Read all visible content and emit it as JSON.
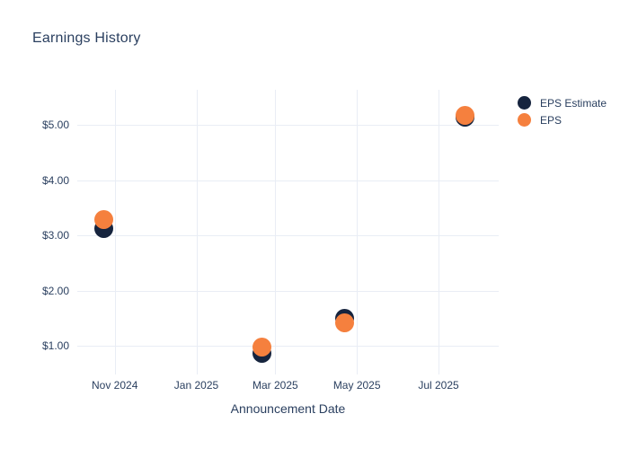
{
  "chart_data": {
    "type": "scatter",
    "title": "Earnings History",
    "xlabel": "Announcement Date",
    "ylabel": "",
    "title_color": "#2a3f5f",
    "text_color": "#2a3f5f",
    "grid_color": "#e9edf5",
    "background_color": "#ffffff",
    "grid": true,
    "legend_position": "right-top",
    "x_range": [
      "2024-10-04",
      "2025-08-15"
    ],
    "y_range": [
      0.48,
      5.64
    ],
    "x_ticks": [
      {
        "label": "Nov 2024",
        "date": "2024-11-01"
      },
      {
        "label": "Jan 2025",
        "date": "2025-01-01"
      },
      {
        "label": "Mar 2025",
        "date": "2025-03-01"
      },
      {
        "label": "May 2025",
        "date": "2025-05-01"
      },
      {
        "label": "Jul 2025",
        "date": "2025-07-01"
      }
    ],
    "y_ticks": [
      {
        "label": "$5.00",
        "value": 5.0
      },
      {
        "label": "$4.00",
        "value": 4.0
      },
      {
        "label": "$3.00",
        "value": 3.0
      },
      {
        "label": "$2.00",
        "value": 2.0
      },
      {
        "label": "$1.00",
        "value": 1.0
      }
    ],
    "series": [
      {
        "name": "EPS Estimate",
        "color": "#16243e",
        "points": [
          {
            "date": "2024-10-24",
            "value": 3.12
          },
          {
            "date": "2025-02-19",
            "value": 0.86
          },
          {
            "date": "2025-04-22",
            "value": 1.49
          },
          {
            "date": "2025-07-21",
            "value": 5.14
          }
        ]
      },
      {
        "name": "EPS",
        "color": "#f5803e",
        "points": [
          {
            "date": "2024-10-24",
            "value": 3.29
          },
          {
            "date": "2025-02-19",
            "value": 0.98
          },
          {
            "date": "2025-04-22",
            "value": 1.42
          },
          {
            "date": "2025-07-21",
            "value": 5.17
          }
        ]
      }
    ]
  }
}
